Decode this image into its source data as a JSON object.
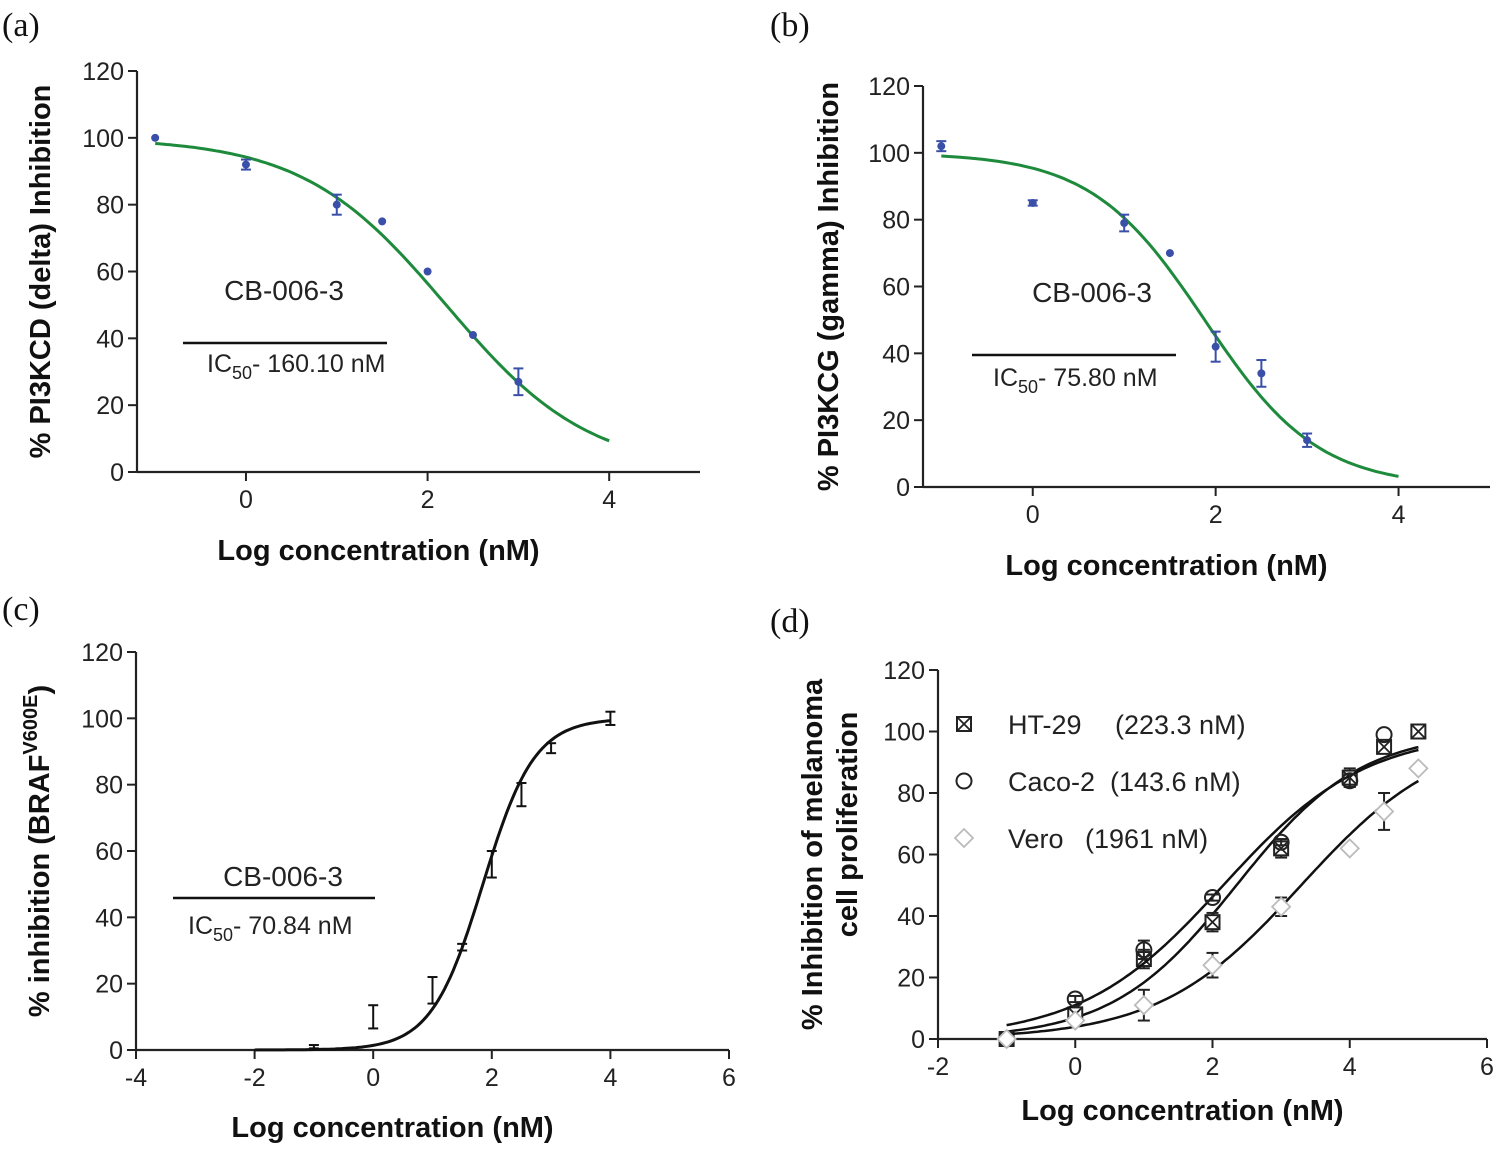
{
  "chart_data": [
    {
      "panel": "(a)",
      "type": "scatter",
      "xlabel": "Log concentration (nM)",
      "ylabel": "% PI3KCD (delta) Inhibition",
      "xlim": [
        -1.2,
        5.0
      ],
      "ylim": [
        0,
        120
      ],
      "xticks": [
        0,
        2,
        4
      ],
      "yticks": [
        0,
        20,
        40,
        60,
        80,
        100,
        120
      ],
      "compound": "CB-006-3",
      "ic50_label": "IC50- 160.10 nM",
      "fit": {
        "bottom": 0,
        "top": 100,
        "logIC50": 2.204,
        "hill": -0.55,
        "x_range": [
          -1,
          4
        ]
      },
      "fit_color": "#1e8a3c",
      "marker_color": "#3a4fa8",
      "series": [
        {
          "x": [
            -1,
            0,
            1,
            1.5,
            2,
            2.5,
            3
          ],
          "y": [
            100,
            92,
            80,
            75,
            60,
            41,
            27
          ],
          "err": [
            0,
            1.5,
            3,
            0,
            0,
            0,
            4
          ]
        }
      ]
    },
    {
      "panel": "(b)",
      "type": "scatter",
      "xlabel": "Log concentration (nM)",
      "ylabel": "% PI3KCG (gamma) Inhibition",
      "xlim": [
        -1.2,
        5.0
      ],
      "ylim": [
        0,
        120
      ],
      "xticks": [
        0,
        2,
        4
      ],
      "yticks": [
        0,
        20,
        40,
        60,
        80,
        100,
        120
      ],
      "compound": "CB-006-3",
      "ic50_label": "IC50- 75.80 nM",
      "fit": {
        "bottom": 0,
        "top": 100,
        "logIC50": 1.88,
        "hill": -0.7,
        "x_range": [
          -1,
          4
        ]
      },
      "fit_color": "#1e8a3c",
      "marker_color": "#3a4fa8",
      "series": [
        {
          "x": [
            -1,
            0,
            1,
            1.5,
            2,
            2.5,
            3
          ],
          "y": [
            102,
            85,
            79,
            70,
            42,
            34,
            14
          ],
          "err": [
            1.5,
            0.8,
            2.5,
            0,
            4.5,
            4,
            2
          ]
        }
      ]
    },
    {
      "panel": "(c)",
      "type": "scatter",
      "xlabel": "Log concentration (nM)",
      "ylabel": "% inhibition (BRAF",
      "ylabel_sup": "V600E",
      "ylabel_end": ")",
      "xlim": [
        -4,
        6
      ],
      "ylim": [
        0,
        120
      ],
      "xticks": [
        -4,
        -2,
        0,
        2,
        4,
        6
      ],
      "yticks": [
        0,
        20,
        40,
        60,
        80,
        100,
        120
      ],
      "compound": "CB-006-3",
      "ic50_label": "IC50- 70.84 nM",
      "fit": {
        "bottom": 0,
        "top": 100,
        "logIC50": 1.85,
        "hill": 1.0,
        "x_range": [
          -2,
          4
        ]
      },
      "fit_color": "#111111",
      "marker_color": "#111111",
      "series": [
        {
          "x": [
            -1,
            0,
            1,
            1.5,
            2,
            2.5,
            3,
            4
          ],
          "y": [
            1,
            10,
            18,
            31,
            56,
            77,
            91,
            100
          ],
          "err": [
            0.5,
            3.5,
            4,
            1,
            4,
            3.5,
            1.5,
            2
          ]
        }
      ]
    },
    {
      "panel": "(d)",
      "type": "scatter",
      "xlabel": "Log concentration (nM)",
      "ylabel": "% Inhibition of melanoma cell proliferation",
      "ylabel_line1": "% Inhibition of melanoma",
      "ylabel_line2": "cell proliferation",
      "xlim": [
        -2,
        6
      ],
      "ylim": [
        0,
        120
      ],
      "xticks": [
        -2,
        0,
        2,
        4,
        6
      ],
      "yticks": [
        0,
        20,
        40,
        60,
        80,
        100,
        120
      ],
      "legend_position": "top-left",
      "series": [
        {
          "name": "HT-29",
          "ic50_text": "(223.3 nM)",
          "marker": "boxed-x",
          "color": "#222222",
          "x": [
            -1,
            0,
            1,
            2,
            3,
            4,
            4.5,
            5
          ],
          "y": [
            0,
            8,
            26,
            38,
            62,
            85,
            95,
            100
          ],
          "err": [
            0,
            2,
            3,
            3,
            3,
            3,
            2,
            0
          ],
          "fit": {
            "bottom": 0,
            "top": 100,
            "logIC50": 2.349,
            "hill": 0.48,
            "x_range": [
              -1,
              5
            ]
          }
        },
        {
          "name": "Caco-2",
          "ic50_text": "(143.6 nM)",
          "marker": "circle",
          "color": "#222222",
          "x": [
            -1,
            0,
            1,
            2,
            3,
            4,
            4.5
          ],
          "y": [
            0,
            13,
            29,
            46,
            64,
            84,
            99
          ],
          "err": [
            0,
            1,
            3,
            1,
            1,
            2,
            0
          ],
          "fit": {
            "bottom": 0,
            "top": 100,
            "logIC50": 2.157,
            "hill": 0.42,
            "x_range": [
              -1,
              5
            ]
          }
        },
        {
          "name": "Vero",
          "ic50_text": "(1961 nM)",
          "marker": "diamond",
          "color": "#bbbbbb",
          "x": [
            -1,
            0,
            1,
            2,
            3,
            4,
            4.5,
            5
          ],
          "y": [
            0,
            6,
            11,
            24,
            43,
            62,
            74,
            88
          ],
          "err": [
            0,
            1,
            5,
            4,
            3,
            0,
            6,
            0
          ],
          "fit": {
            "bottom": 0,
            "top": 100,
            "logIC50": 3.292,
            "hill": 0.42,
            "x_range": [
              -1,
              5
            ]
          }
        }
      ]
    }
  ]
}
